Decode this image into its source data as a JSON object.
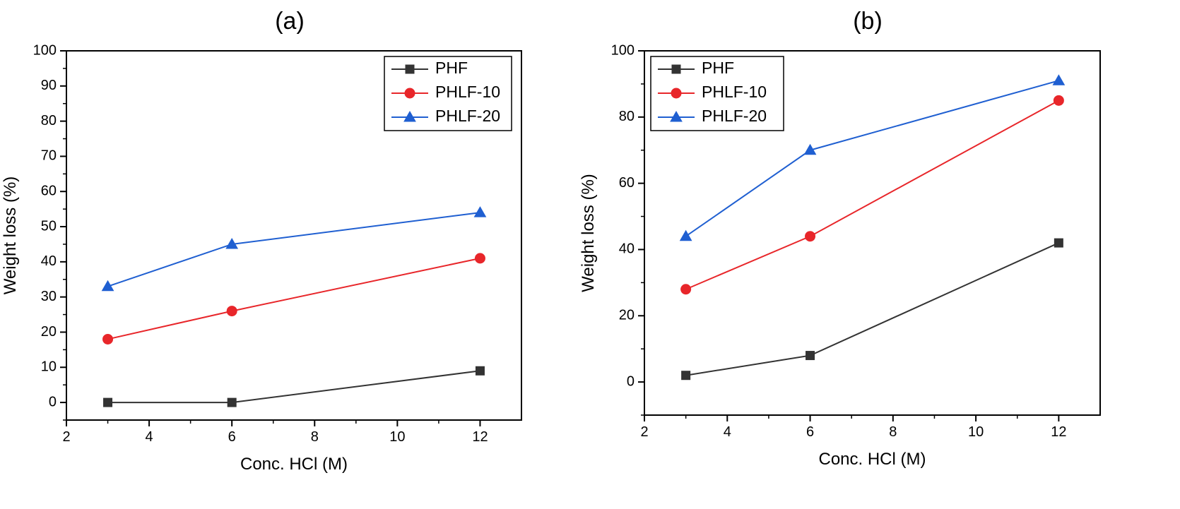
{
  "chart_data": [
    {
      "type": "line",
      "title": "(a)",
      "xlabel": "Conc. HCl (M)",
      "ylabel": "Weight loss (%)",
      "xlim": [
        2,
        13
      ],
      "ylim": [
        -5,
        100
      ],
      "xticks": [
        2,
        4,
        6,
        8,
        10,
        12
      ],
      "yticks": [
        0,
        10,
        20,
        30,
        40,
        50,
        60,
        70,
        80,
        90,
        100
      ],
      "grid": false,
      "legend_position": "top-right",
      "x": [
        3,
        6,
        12
      ],
      "series": [
        {
          "name": "PHF",
          "values": [
            0,
            0,
            9
          ],
          "color": "#333333",
          "marker": "square"
        },
        {
          "name": "PHLF-10",
          "values": [
            18,
            26,
            41
          ],
          "color": "#e8262a",
          "marker": "circle"
        },
        {
          "name": "PHLF-20",
          "values": [
            33,
            45,
            54
          ],
          "color": "#1f5fd1",
          "marker": "triangle"
        }
      ]
    },
    {
      "type": "line",
      "title": "(b)",
      "xlabel": "Conc. HCl (M)",
      "ylabel": "Weight loss (%)",
      "xlim": [
        2,
        13
      ],
      "ylim": [
        -10,
        100
      ],
      "xticks": [
        2,
        4,
        6,
        8,
        10,
        12
      ],
      "yticks": [
        0,
        20,
        40,
        60,
        80,
        100
      ],
      "grid": false,
      "legend_position": "top-left",
      "x": [
        3,
        6,
        12
      ],
      "series": [
        {
          "name": "PHF",
          "values": [
            2,
            8,
            42
          ],
          "color": "#333333",
          "marker": "square"
        },
        {
          "name": "PHLF-10",
          "values": [
            28,
            44,
            85
          ],
          "color": "#e8262a",
          "marker": "circle"
        },
        {
          "name": "PHLF-20",
          "values": [
            44,
            70,
            91
          ],
          "color": "#1f5fd1",
          "marker": "triangle"
        }
      ]
    }
  ]
}
